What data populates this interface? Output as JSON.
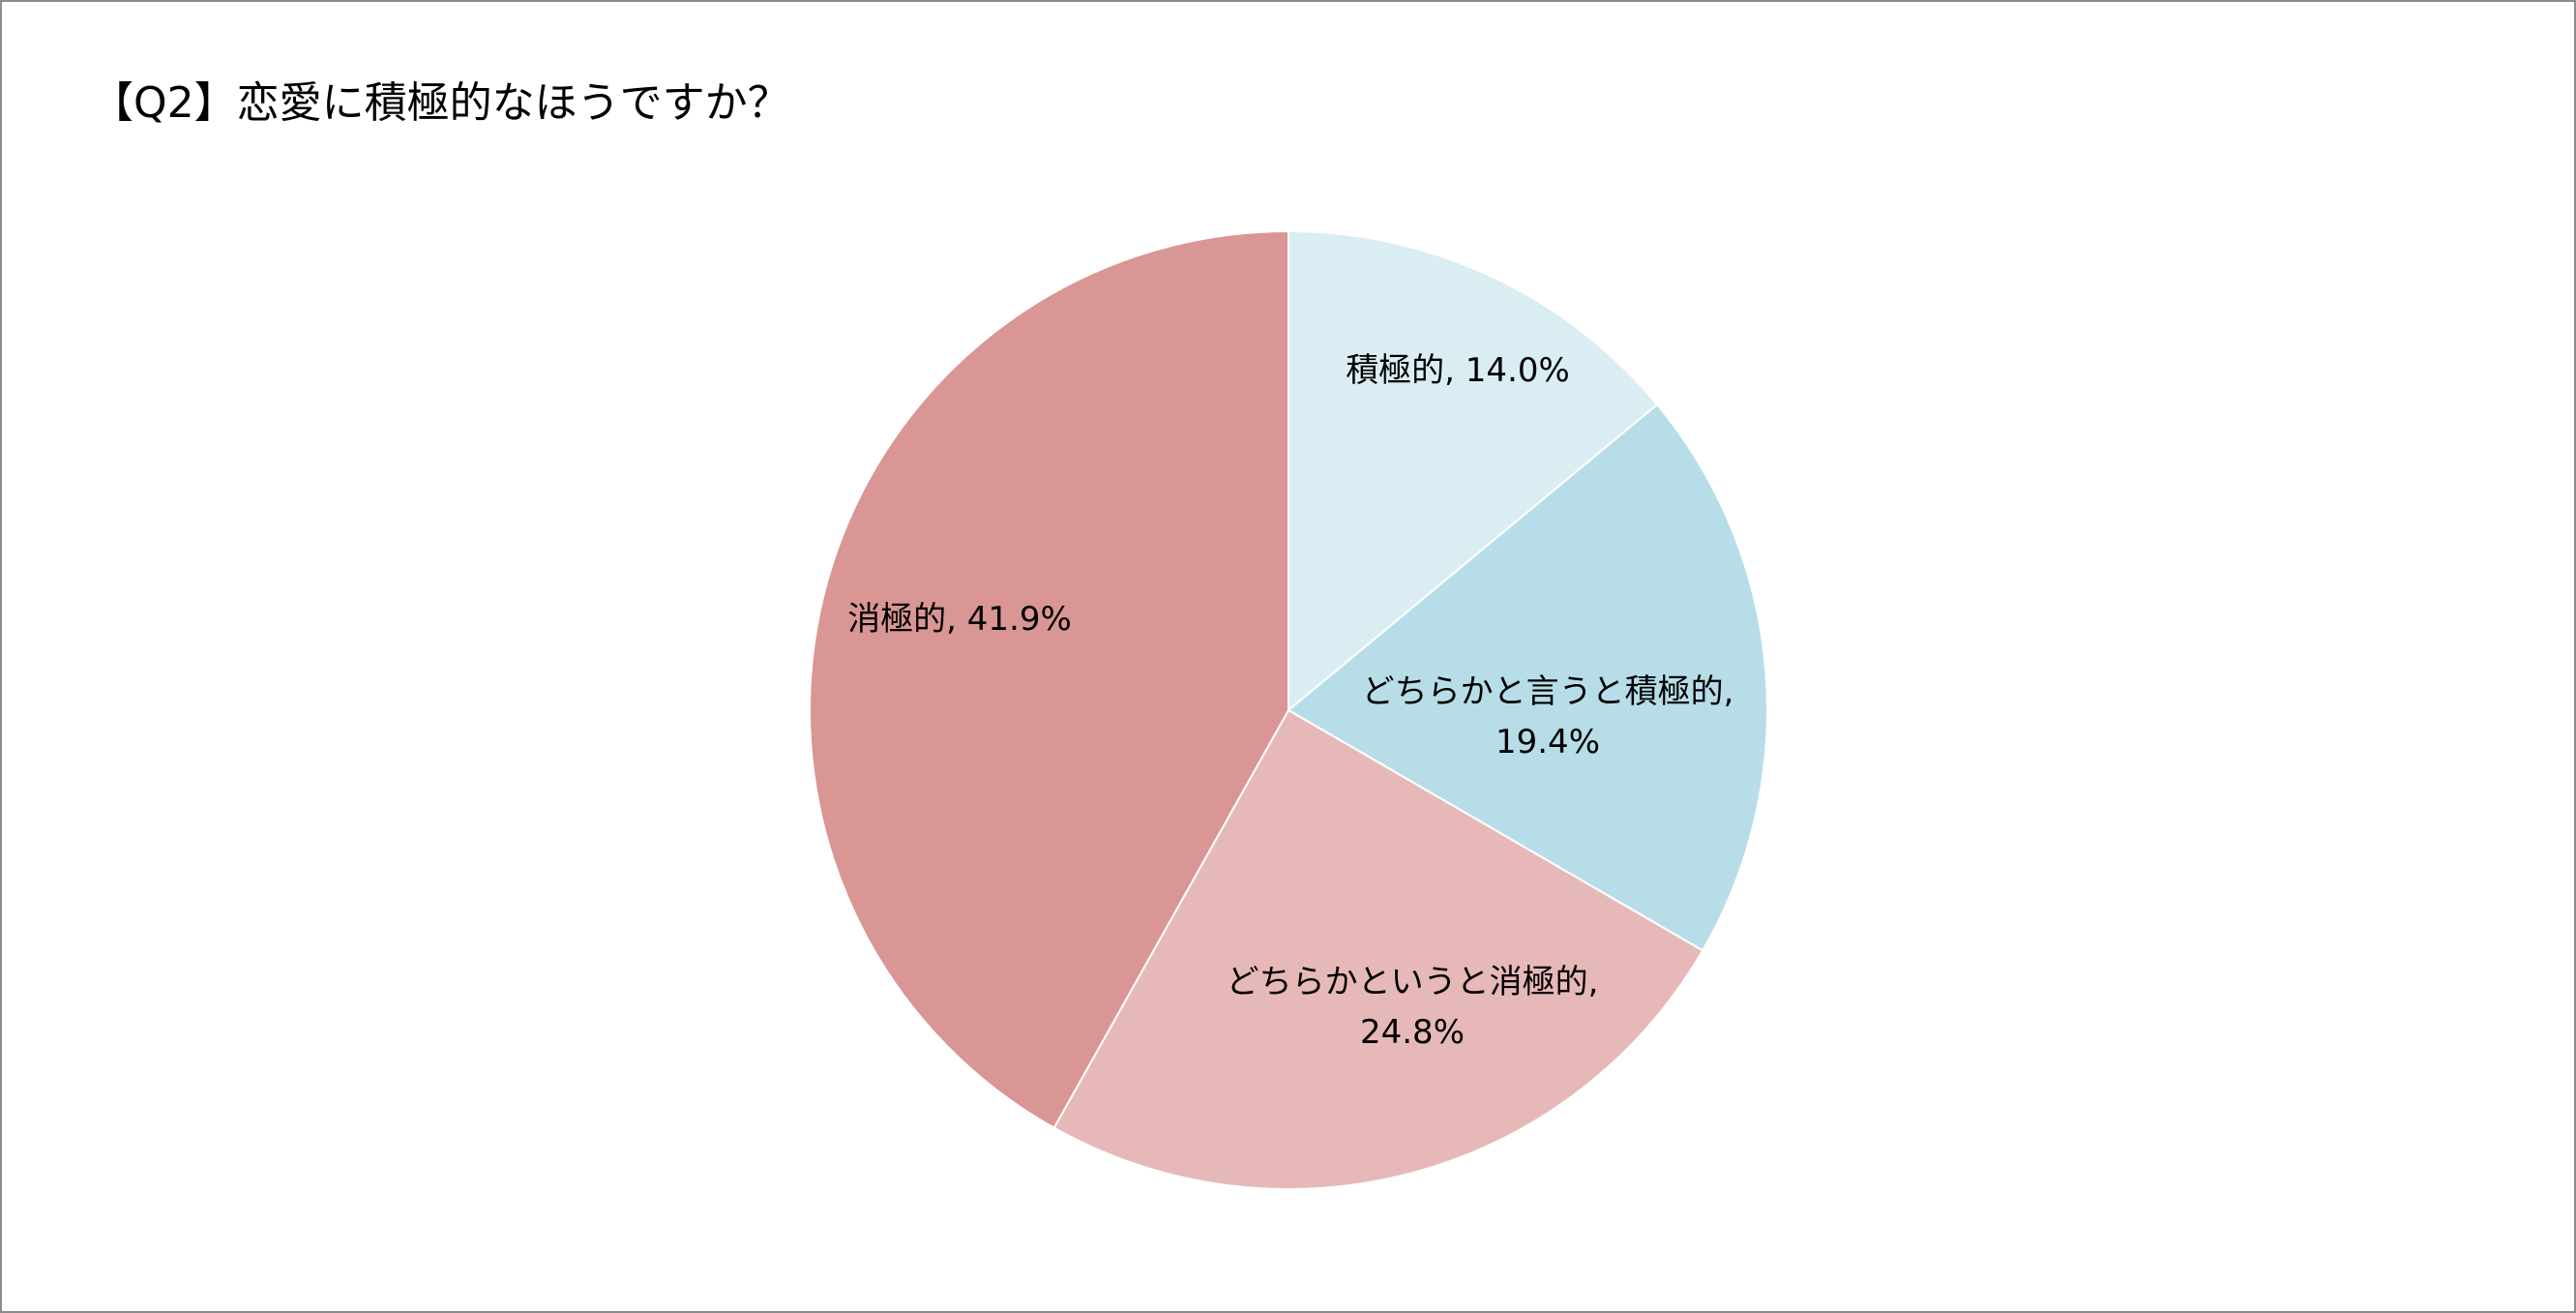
{
  "chart_data": {
    "type": "pie",
    "title": "【Q2】恋愛に積極的なほうですか？",
    "slices": [
      {
        "label": "積極的",
        "value": 14.0,
        "value_text": "14.0%",
        "color": "#DAEDF3"
      },
      {
        "label": "どちらかと言うと積極的",
        "value": 19.4,
        "value_text": "19.4%",
        "color": "#B7DEE8"
      },
      {
        "label": "どちらかというと消極的",
        "value": 24.8,
        "value_text": "24.8%",
        "color": "#E6B9B8"
      },
      {
        "label": "消極的",
        "value": 41.9,
        "value_text": "41.9%",
        "color": "#D99694"
      }
    ],
    "start": "12 o'clock",
    "direction": "clockwise",
    "legend": "none",
    "data_labels": "category name, percentage"
  }
}
